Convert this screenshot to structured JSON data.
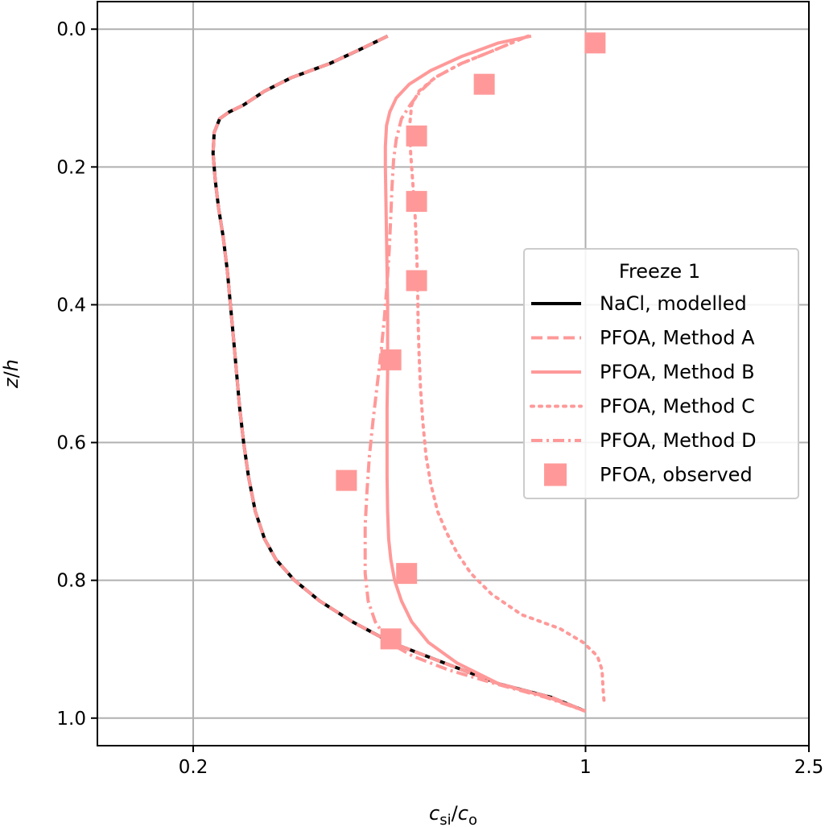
{
  "chart_data": {
    "type": "line",
    "xlabel": "c_si/c_o",
    "ylabel": "z/h",
    "x_scale": "log",
    "xlim": [
      0.135,
      2.5
    ],
    "ylim": [
      1.04,
      -0.04
    ],
    "y_inverted": true,
    "grid": true,
    "xticks": [
      0.2,
      1,
      2.5
    ],
    "xtick_labels": [
      "0.2",
      "1",
      "2.5"
    ],
    "yticks": [
      0.0,
      0.2,
      0.4,
      0.6,
      0.8,
      1.0
    ],
    "ytick_labels": [
      "0.0",
      "0.2",
      "0.4",
      "0.6",
      "0.8",
      "1.0"
    ],
    "legend": {
      "title": "Freeze 1",
      "placement": "center-right"
    },
    "series": [
      {
        "name": "NaCl, modelled",
        "style": "solid",
        "color": "#000000",
        "x": [
          0.444,
          0.395,
          0.35,
          0.3,
          0.268,
          0.246,
          0.232,
          0.223,
          0.218,
          0.217,
          0.219,
          0.222,
          0.226,
          0.23,
          0.233,
          0.236,
          0.239,
          0.242,
          0.246,
          0.251,
          0.258,
          0.268,
          0.281,
          0.303,
          0.336,
          0.384,
          0.45,
          0.56,
          0.7,
          0.87,
          1.0
        ],
        "y": [
          0.01,
          0.03,
          0.05,
          0.07,
          0.09,
          0.11,
          0.12,
          0.13,
          0.15,
          0.18,
          0.22,
          0.26,
          0.3,
          0.35,
          0.4,
          0.45,
          0.5,
          0.55,
          0.6,
          0.65,
          0.7,
          0.74,
          0.77,
          0.8,
          0.83,
          0.86,
          0.89,
          0.92,
          0.95,
          0.97,
          0.99
        ]
      },
      {
        "name": "PFOA, Method A",
        "style": "dashed",
        "color": "#ff9999",
        "x": [
          0.444,
          0.395,
          0.35,
          0.3,
          0.268,
          0.246,
          0.232,
          0.223,
          0.218,
          0.217,
          0.219,
          0.222,
          0.226,
          0.23,
          0.233,
          0.236,
          0.239,
          0.242,
          0.246,
          0.251,
          0.258,
          0.268,
          0.281,
          0.303,
          0.336,
          0.384,
          0.45,
          0.56,
          0.7,
          0.87,
          1.0
        ],
        "y": [
          0.01,
          0.03,
          0.05,
          0.07,
          0.09,
          0.11,
          0.12,
          0.13,
          0.15,
          0.18,
          0.22,
          0.26,
          0.3,
          0.35,
          0.4,
          0.45,
          0.5,
          0.55,
          0.6,
          0.65,
          0.7,
          0.74,
          0.77,
          0.8,
          0.83,
          0.86,
          0.89,
          0.92,
          0.95,
          0.97,
          0.99
        ]
      },
      {
        "name": "PFOA, Method B",
        "style": "solid",
        "color": "#ff9999",
        "x": [
          0.8,
          0.7,
          0.6,
          0.53,
          0.485,
          0.46,
          0.448,
          0.442,
          0.44,
          0.44,
          0.441,
          0.442,
          0.443,
          0.444,
          0.444,
          0.444,
          0.443,
          0.443,
          0.443,
          0.444,
          0.446,
          0.45,
          0.457,
          0.47,
          0.49,
          0.525,
          0.59,
          0.7,
          0.86,
          1.0
        ],
        "y": [
          0.01,
          0.02,
          0.04,
          0.06,
          0.08,
          0.1,
          0.12,
          0.14,
          0.17,
          0.2,
          0.25,
          0.3,
          0.35,
          0.4,
          0.45,
          0.5,
          0.55,
          0.6,
          0.65,
          0.7,
          0.74,
          0.77,
          0.8,
          0.83,
          0.86,
          0.89,
          0.92,
          0.95,
          0.97,
          0.99
        ]
      },
      {
        "name": "PFOA, Method C",
        "style": "dotted",
        "color": "#ff9999",
        "x": [
          0.79,
          0.69,
          0.6,
          0.54,
          0.505,
          0.49,
          0.486,
          0.488,
          0.492,
          0.497,
          0.5,
          0.502,
          0.503,
          0.505,
          0.508,
          0.513,
          0.52,
          0.53,
          0.545,
          0.565,
          0.59,
          0.625,
          0.68,
          0.77,
          0.9,
          0.99,
          1.05,
          1.07,
          1.075,
          1.08
        ],
        "y": [
          0.01,
          0.03,
          0.05,
          0.07,
          0.09,
          0.11,
          0.14,
          0.18,
          0.22,
          0.27,
          0.32,
          0.37,
          0.42,
          0.47,
          0.52,
          0.57,
          0.62,
          0.66,
          0.7,
          0.73,
          0.76,
          0.79,
          0.82,
          0.85,
          0.87,
          0.89,
          0.91,
          0.93,
          0.96,
          0.98
        ]
      },
      {
        "name": "PFOA, Method D",
        "style": "dashdot",
        "color": "#ff9999",
        "x": [
          0.79,
          0.69,
          0.6,
          0.54,
          0.508,
          0.487,
          0.47,
          0.46,
          0.455,
          0.452,
          0.45,
          0.447,
          0.443,
          0.438,
          0.432,
          0.425,
          0.418,
          0.412,
          0.408,
          0.405,
          0.405,
          0.41,
          0.422,
          0.446,
          0.492,
          0.57,
          0.69,
          0.85,
          1.0
        ],
        "y": [
          0.01,
          0.03,
          0.05,
          0.07,
          0.09,
          0.11,
          0.13,
          0.16,
          0.19,
          0.23,
          0.27,
          0.32,
          0.37,
          0.42,
          0.47,
          0.52,
          0.57,
          0.62,
          0.67,
          0.72,
          0.79,
          0.83,
          0.86,
          0.89,
          0.91,
          0.93,
          0.95,
          0.97,
          0.99
        ]
      },
      {
        "name": "PFOA, observed",
        "style": "marker",
        "color": "#ff9999",
        "x": [
          1.04,
          0.66,
          0.5,
          0.5,
          0.5,
          0.45,
          0.375,
          0.48,
          0.45
        ],
        "y": [
          0.02,
          0.08,
          0.155,
          0.25,
          0.365,
          0.48,
          0.655,
          0.79,
          0.885
        ]
      }
    ]
  }
}
